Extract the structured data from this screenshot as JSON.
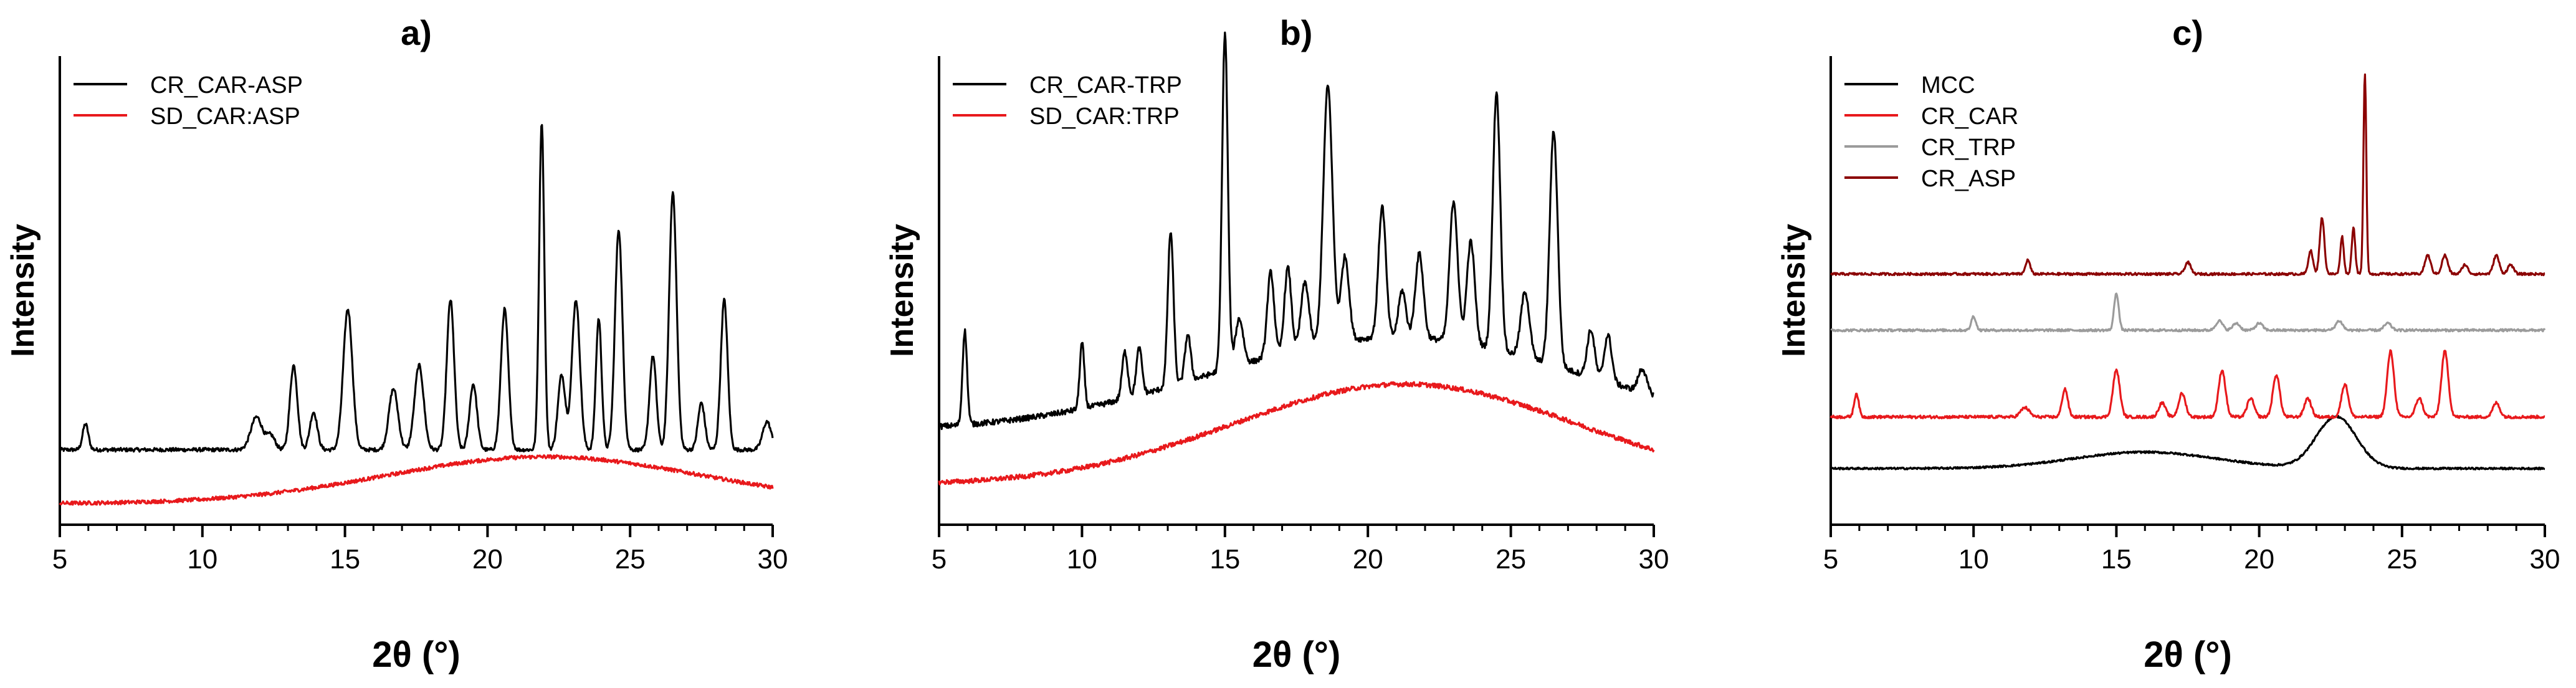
{
  "chart_data": [
    {
      "panel": "a)",
      "type": "line",
      "title": "a)",
      "xlabel": "2θ (°)",
      "ylabel": "Intensity",
      "xlim": [
        5,
        30
      ],
      "xticks": [
        "5",
        "10",
        "15",
        "20",
        "25",
        "30"
      ],
      "y_ticks_shown": false,
      "legend_position": "top-left",
      "series": [
        {
          "name": "CR_CAR-ASP",
          "color": "#000000",
          "baseline": 0.16,
          "slope": 0.0,
          "noise": 0.004,
          "halo": [],
          "peaks": [
            {
              "x": 5.9,
              "h": 0.055,
              "w": 0.1
            },
            {
              "x": 11.9,
              "h": 0.07,
              "w": 0.2
            },
            {
              "x": 12.4,
              "h": 0.03,
              "w": 0.15
            },
            {
              "x": 13.2,
              "h": 0.18,
              "w": 0.13
            },
            {
              "x": 13.9,
              "h": 0.08,
              "w": 0.13
            },
            {
              "x": 15.1,
              "h": 0.3,
              "w": 0.16
            },
            {
              "x": 16.7,
              "h": 0.13,
              "w": 0.16
            },
            {
              "x": 17.6,
              "h": 0.18,
              "w": 0.16
            },
            {
              "x": 18.7,
              "h": 0.32,
              "w": 0.13
            },
            {
              "x": 19.5,
              "h": 0.14,
              "w": 0.13
            },
            {
              "x": 20.6,
              "h": 0.3,
              "w": 0.13
            },
            {
              "x": 21.9,
              "h": 0.7,
              "w": 0.09
            },
            {
              "x": 22.6,
              "h": 0.16,
              "w": 0.13
            },
            {
              "x": 23.1,
              "h": 0.32,
              "w": 0.14
            },
            {
              "x": 23.9,
              "h": 0.28,
              "w": 0.1
            },
            {
              "x": 24.6,
              "h": 0.47,
              "w": 0.13
            },
            {
              "x": 25.8,
              "h": 0.2,
              "w": 0.12
            },
            {
              "x": 26.5,
              "h": 0.55,
              "w": 0.13
            },
            {
              "x": 27.5,
              "h": 0.1,
              "w": 0.12
            },
            {
              "x": 28.3,
              "h": 0.32,
              "w": 0.12
            },
            {
              "x": 29.8,
              "h": 0.06,
              "w": 0.15
            }
          ]
        },
        {
          "name": "SD_CAR:ASP",
          "color": "#e8191c",
          "baseline": 0.045,
          "slope": 0.0,
          "noise": 0.004,
          "halo": [
            {
              "x": 22.0,
              "h": 0.1,
              "w": 5.5
            }
          ],
          "peaks": []
        }
      ]
    },
    {
      "panel": "b)",
      "type": "line",
      "title": "b)",
      "xlabel": "2θ (°)",
      "ylabel": "Intensity",
      "xlim": [
        5,
        30
      ],
      "xticks": [
        "5",
        "10",
        "15",
        "20",
        "25",
        "30"
      ],
      "y_ticks_shown": false,
      "legend_position": "top-left",
      "series": [
        {
          "name": "CR_CAR-TRP",
          "color": "#000000",
          "baseline": 0.2,
          "slope": 0.0,
          "noise": 0.006,
          "halo": [
            {
              "x": 21.0,
              "h": 0.2,
              "w": 6.5
            }
          ],
          "peaks": [
            {
              "x": 5.9,
              "h": 0.2,
              "w": 0.08
            },
            {
              "x": 10.0,
              "h": 0.14,
              "w": 0.08
            },
            {
              "x": 11.5,
              "h": 0.1,
              "w": 0.1
            },
            {
              "x": 12.0,
              "h": 0.1,
              "w": 0.1
            },
            {
              "x": 13.1,
              "h": 0.33,
              "w": 0.1
            },
            {
              "x": 13.7,
              "h": 0.1,
              "w": 0.1
            },
            {
              "x": 15.0,
              "h": 0.72,
              "w": 0.1
            },
            {
              "x": 15.5,
              "h": 0.1,
              "w": 0.14
            },
            {
              "x": 16.6,
              "h": 0.18,
              "w": 0.12
            },
            {
              "x": 17.2,
              "h": 0.18,
              "w": 0.12
            },
            {
              "x": 17.8,
              "h": 0.14,
              "w": 0.14
            },
            {
              "x": 18.6,
              "h": 0.55,
              "w": 0.16
            },
            {
              "x": 19.2,
              "h": 0.18,
              "w": 0.14
            },
            {
              "x": 20.5,
              "h": 0.28,
              "w": 0.13
            },
            {
              "x": 21.2,
              "h": 0.1,
              "w": 0.13
            },
            {
              "x": 21.8,
              "h": 0.18,
              "w": 0.14
            },
            {
              "x": 23.0,
              "h": 0.3,
              "w": 0.14
            },
            {
              "x": 23.6,
              "h": 0.22,
              "w": 0.14
            },
            {
              "x": 24.5,
              "h": 0.55,
              "w": 0.13
            },
            {
              "x": 25.5,
              "h": 0.14,
              "w": 0.15
            },
            {
              "x": 26.5,
              "h": 0.5,
              "w": 0.14
            },
            {
              "x": 27.8,
              "h": 0.1,
              "w": 0.13
            },
            {
              "x": 28.4,
              "h": 0.1,
              "w": 0.13
            },
            {
              "x": 29.6,
              "h": 0.05,
              "w": 0.14
            }
          ]
        },
        {
          "name": "SD_CAR:TRP",
          "color": "#e8191c",
          "baseline": 0.085,
          "slope": 0.0,
          "noise": 0.005,
          "halo": [
            {
              "x": 21.3,
              "h": 0.215,
              "w": 6.0
            }
          ],
          "peaks": []
        }
      ]
    },
    {
      "panel": "c)",
      "type": "line",
      "title": "c)",
      "xlabel": "2θ (°)",
      "ylabel": "Intensity",
      "xlim": [
        5,
        30
      ],
      "xticks": [
        "5",
        "10",
        "15",
        "20",
        "25",
        "30"
      ],
      "y_ticks_shown": false,
      "legend_position": "top-left",
      "series": [
        {
          "name": "MCC",
          "color": "#000000",
          "baseline": 0.12,
          "slope": 0.0,
          "noise": 0.002,
          "halo": [
            {
              "x": 16.0,
              "h": 0.035,
              "w": 2.5
            }
          ],
          "peaks": [
            {
              "x": 22.7,
              "h": 0.11,
              "w": 0.7
            }
          ]
        },
        {
          "name": "CR_CAR",
          "color": "#e8191c",
          "baseline": 0.23,
          "slope": 0.0,
          "noise": 0.003,
          "halo": [],
          "peaks": [
            {
              "x": 5.9,
              "h": 0.05,
              "w": 0.08
            },
            {
              "x": 11.8,
              "h": 0.02,
              "w": 0.15
            },
            {
              "x": 13.2,
              "h": 0.06,
              "w": 0.1
            },
            {
              "x": 15.0,
              "h": 0.1,
              "w": 0.12
            },
            {
              "x": 16.6,
              "h": 0.03,
              "w": 0.12
            },
            {
              "x": 17.3,
              "h": 0.05,
              "w": 0.12
            },
            {
              "x": 18.7,
              "h": 0.1,
              "w": 0.12
            },
            {
              "x": 19.7,
              "h": 0.04,
              "w": 0.12
            },
            {
              "x": 20.6,
              "h": 0.09,
              "w": 0.12
            },
            {
              "x": 21.7,
              "h": 0.04,
              "w": 0.12
            },
            {
              "x": 23.0,
              "h": 0.07,
              "w": 0.12
            },
            {
              "x": 24.6,
              "h": 0.14,
              "w": 0.12
            },
            {
              "x": 25.6,
              "h": 0.04,
              "w": 0.12
            },
            {
              "x": 26.5,
              "h": 0.14,
              "w": 0.12
            },
            {
              "x": 28.3,
              "h": 0.03,
              "w": 0.12
            }
          ]
        },
        {
          "name": "CR_TRP",
          "color": "#9b9b9b",
          "baseline": 0.415,
          "slope": 0.0,
          "noise": 0.0025,
          "halo": [],
          "peaks": [
            {
              "x": 10.0,
              "h": 0.03,
              "w": 0.08
            },
            {
              "x": 15.0,
              "h": 0.08,
              "w": 0.08
            },
            {
              "x": 18.6,
              "h": 0.02,
              "w": 0.12
            },
            {
              "x": 19.2,
              "h": 0.015,
              "w": 0.12
            },
            {
              "x": 20.0,
              "h": 0.015,
              "w": 0.12
            },
            {
              "x": 22.8,
              "h": 0.02,
              "w": 0.12
            },
            {
              "x": 24.5,
              "h": 0.015,
              "w": 0.12
            }
          ]
        },
        {
          "name": "CR_ASP",
          "color": "#8b0000",
          "baseline": 0.535,
          "slope": 0.0,
          "noise": 0.0025,
          "halo": [],
          "peaks": [
            {
              "x": 11.9,
              "h": 0.03,
              "w": 0.08
            },
            {
              "x": 17.5,
              "h": 0.025,
              "w": 0.1
            },
            {
              "x": 21.8,
              "h": 0.05,
              "w": 0.08
            },
            {
              "x": 22.2,
              "h": 0.12,
              "w": 0.08
            },
            {
              "x": 22.9,
              "h": 0.08,
              "w": 0.06
            },
            {
              "x": 23.3,
              "h": 0.1,
              "w": 0.06
            },
            {
              "x": 23.7,
              "h": 0.43,
              "w": 0.05
            },
            {
              "x": 25.9,
              "h": 0.04,
              "w": 0.1
            },
            {
              "x": 26.5,
              "h": 0.04,
              "w": 0.1
            },
            {
              "x": 27.2,
              "h": 0.02,
              "w": 0.1
            },
            {
              "x": 28.3,
              "h": 0.04,
              "w": 0.1
            },
            {
              "x": 28.8,
              "h": 0.02,
              "w": 0.1
            }
          ]
        }
      ]
    }
  ]
}
